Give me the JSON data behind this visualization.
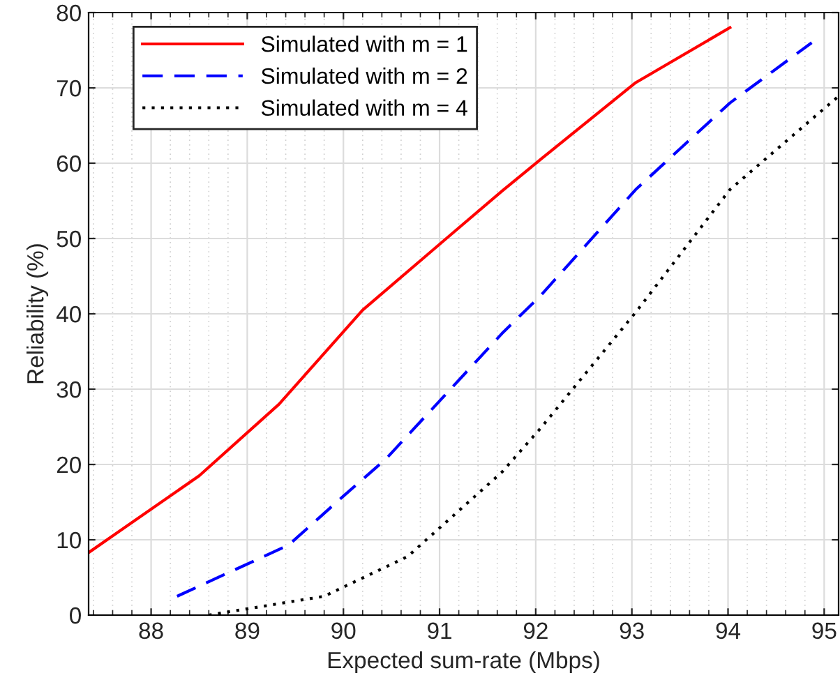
{
  "chart_data": {
    "type": "line",
    "xlabel": "Expected sum-rate (Mbps)",
    "ylabel": "Reliability (%)",
    "xlim": [
      87.35,
      95.15
    ],
    "xticks": [
      88,
      89,
      90,
      91,
      92,
      93,
      94,
      95
    ],
    "ylim": [
      0,
      80
    ],
    "yticks": [
      0,
      10,
      20,
      30,
      40,
      50,
      60,
      70,
      80
    ],
    "grid": true,
    "legend": "top left",
    "series": [
      {
        "name": "Simulated with m = 1",
        "color": "#ff0000",
        "line_style": "solid",
        "x": [
          87.35,
          88.5,
          89.33,
          90.2,
          91.07,
          91.65,
          92.05,
          93.04,
          94.02
        ],
        "values": [
          8.3,
          18.5,
          28,
          40.5,
          50,
          56.3,
          60.5,
          70.7,
          78
        ]
      },
      {
        "name": "Simulated with m = 2",
        "color": "#0000ff",
        "line_style": "dashed",
        "x": [
          88.27,
          89.43,
          90.0,
          90.44,
          91.65,
          92.05,
          93.04,
          94.02,
          94.87
        ],
        "values": [
          2.5,
          9.3,
          15.8,
          20.7,
          37.4,
          42.4,
          56.5,
          68,
          76
        ]
      },
      {
        "name": "Simulated with m = 4",
        "color": "#000000",
        "line_style": "dotted",
        "x": [
          88.6,
          89.8,
          90.67,
          91.65,
          92.05,
          93.04,
          94.02,
          95.15
        ],
        "values": [
          0,
          2.5,
          7.8,
          19,
          24.8,
          40.2,
          56.5,
          68.9
        ]
      }
    ]
  }
}
